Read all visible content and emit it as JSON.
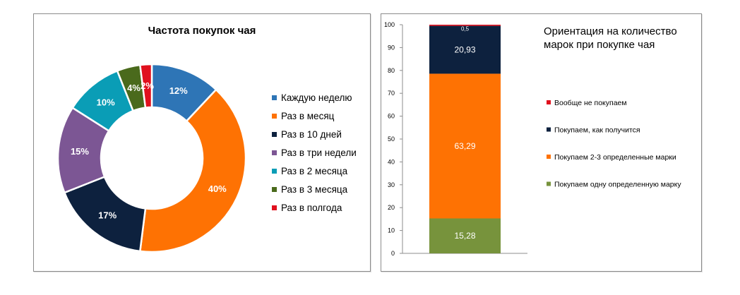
{
  "chart_data": [
    {
      "type": "pie",
      "variant": "donut",
      "title": "Частота покупок чая",
      "categories": [
        "Каждую неделю",
        "Раз в месяц",
        "Раз в 10 дней",
        "Раз в три недели",
        "Раз в 2 месяца",
        "Раз в 3 месяца",
        "Раз в полгода"
      ],
      "values": [
        12,
        40,
        17,
        15,
        10,
        4,
        2
      ],
      "data_labels": [
        "12%",
        "40%",
        "17%",
        "15%",
        "10%",
        "4%",
        "2%"
      ],
      "colors": [
        "#2e75b6",
        "#fe7203",
        "#0d213e",
        "#7c5694",
        "#0a9db6",
        "#4a6a1c",
        "#e0101e"
      ],
      "legend_position": "right"
    },
    {
      "type": "bar",
      "variant": "stacked-100",
      "title": "Ориентация на количество марок при покупке чая",
      "title_lines": [
        "Ориентация на количество",
        "марок при покупке чая"
      ],
      "ylim": [
        0,
        100
      ],
      "yticks": [
        0,
        10,
        20,
        30,
        40,
        50,
        60,
        70,
        80,
        90,
        100
      ],
      "grid": false,
      "legend_position": "right",
      "series": [
        {
          "name": "Покупаем одну определенную марку",
          "value": 15.28,
          "label": "15,28",
          "color": "#77933c"
        },
        {
          "name": "Покупаем 2-3 определенные марки",
          "value": 63.29,
          "label": "63,29",
          "color": "#fe7203"
        },
        {
          "name": "Покупаем, как получится",
          "value": 20.93,
          "label": "20,93",
          "color": "#0d213e"
        },
        {
          "name": "Вообще не покупаем",
          "value": 0.5,
          "label": "0,5",
          "color": "#e0101e"
        }
      ],
      "legend_order": [
        "Вообще не покупаем",
        "Покупаем, как получится",
        "Покупаем 2-3 определенные марки",
        "Покупаем одну определенную марку"
      ]
    }
  ]
}
